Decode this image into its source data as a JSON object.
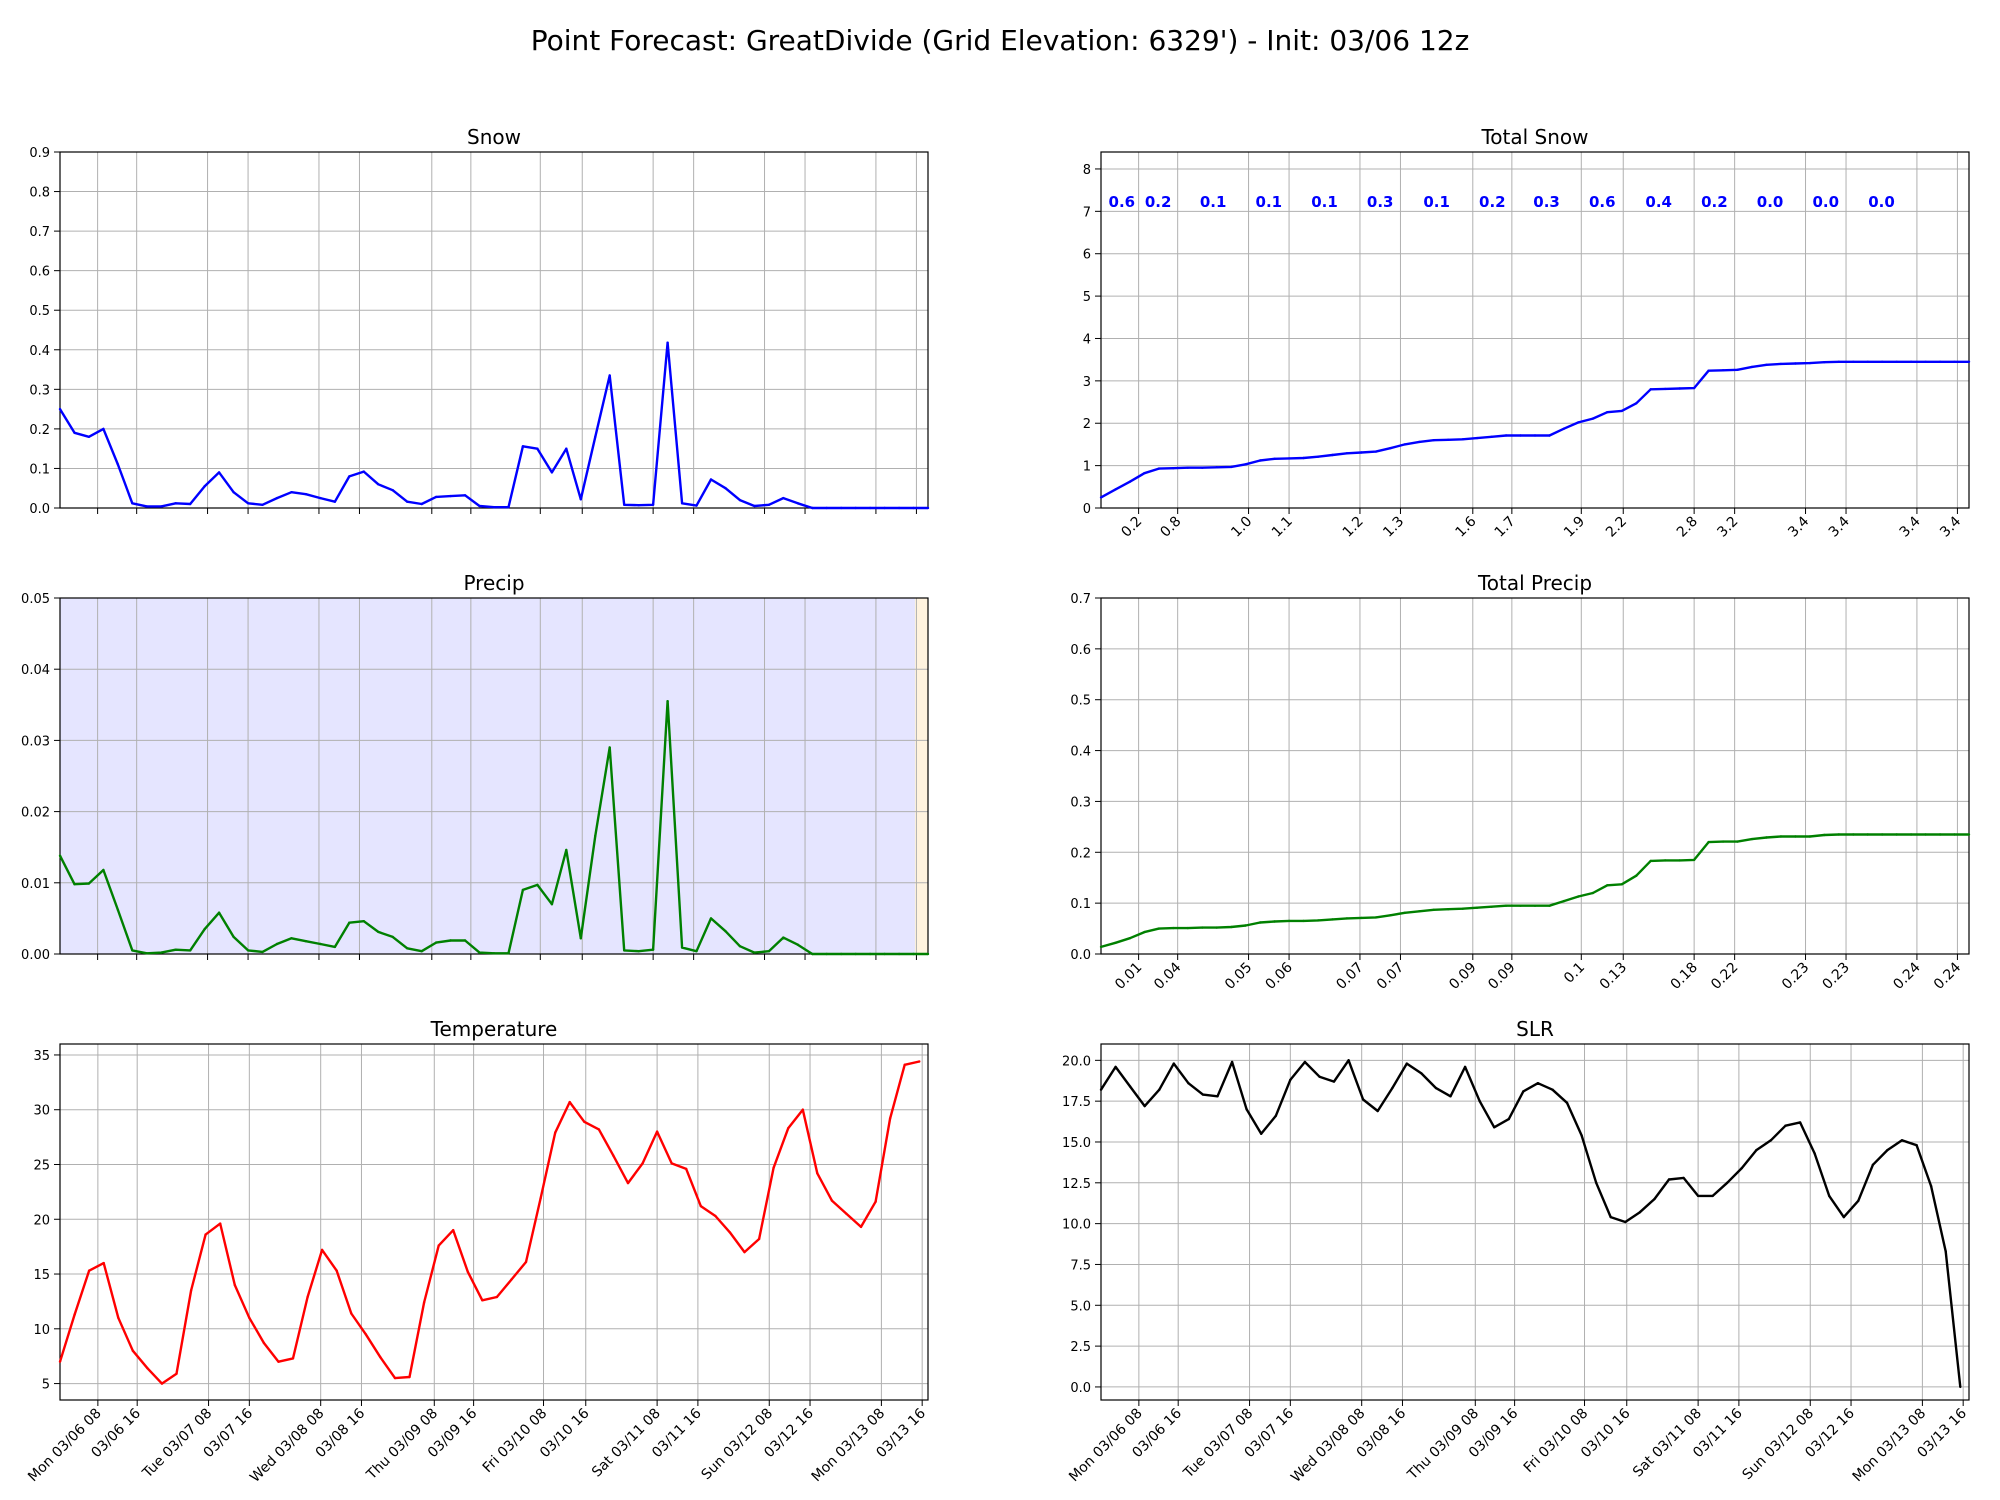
{
  "figure_title": "Point Forecast: GreatDivide (Grid Elevation: 6329') - Init: 03/06 12z",
  "date_ticks": [
    "Mon 03/06 08",
    "03/06 16",
    "Tue 03/07 08",
    "03/07 16",
    "Wed 03/08 08",
    "03/08 16",
    "Thu 03/09 08",
    "03/09 16",
    "Fri 03/10 08",
    "03/10 16",
    "Sat 03/11 08",
    "03/11 16",
    "Sun 03/12 08",
    "03/12 16",
    "Mon 03/13 08",
    "03/13 16"
  ],
  "colors": {
    "snow": "#0000ff",
    "precip": "#008000",
    "temperature": "#ff0000",
    "slr": "#000000",
    "precip_shade": "#e5e5ff",
    "precip_shade_end": "#fff3df",
    "grid": "#b0b0b0"
  },
  "chart_data": [
    {
      "id": "snow",
      "type": "line",
      "title": "Snow",
      "xlabel": "",
      "ylabel": "",
      "grid": true,
      "ylim": [
        0,
        0.9
      ],
      "yticks": [
        "0.0",
        "0.1",
        "0.2",
        "0.3",
        "0.4",
        "0.5",
        "0.6",
        "0.7",
        "0.8",
        "0.9"
      ],
      "xtick_labels_shown": false,
      "series": [
        {
          "color": "#0000ff",
          "values": [
            0.25,
            0.19,
            0.18,
            0.2,
            0.11,
            0.012,
            0.004,
            0.004,
            0.012,
            0.01,
            0.055,
            0.09,
            0.04,
            0.012,
            0.008,
            0.025,
            0.04,
            0.035,
            0.025,
            0.016,
            0.08,
            0.092,
            0.06,
            0.045,
            0.016,
            0.01,
            0.028,
            0.03,
            0.032,
            0.005,
            0.002,
            0.002,
            0.156,
            0.15,
            0.09,
            0.15,
            0.022,
            0.18,
            0.335,
            0.008,
            0.007,
            0.008,
            0.418,
            0.012,
            0.006,
            0.072,
            0.05,
            0.02,
            0.005,
            0.008,
            0.025,
            0.012,
            0.0,
            0.0,
            0.0,
            0.0,
            0.0,
            0.0,
            0.0,
            0.0,
            0.0
          ]
        }
      ]
    },
    {
      "id": "total-snow",
      "type": "line",
      "title": "Total Snow",
      "xlabel": "",
      "ylabel": "",
      "grid": true,
      "ylim": [
        0,
        8.4
      ],
      "yticks": [
        "0",
        "1",
        "2",
        "3",
        "4",
        "5",
        "6",
        "7",
        "8"
      ],
      "xtick_labels": [
        "0.2",
        "0.8",
        "1.0",
        "1.1",
        "1.2",
        "1.3",
        "1.6",
        "1.7",
        "1.9",
        "2.2",
        "2.8",
        "3.2",
        "3.4",
        "3.4",
        "3.4",
        "3.4"
      ],
      "period_totals": [
        "0.6",
        "0.2",
        "0.1",
        "0.1",
        "0.1",
        "0.3",
        "0.1",
        "0.2",
        "0.3",
        "0.6",
        "0.4",
        "0.2",
        "0.0",
        "0.0",
        "0.0"
      ],
      "series": [
        {
          "color": "#0000ff",
          "values": [
            0.25,
            0.44,
            0.62,
            0.82,
            0.93,
            0.94,
            0.95,
            0.95,
            0.96,
            0.97,
            1.03,
            1.12,
            1.16,
            1.17,
            1.18,
            1.21,
            1.25,
            1.29,
            1.31,
            1.33,
            1.41,
            1.5,
            1.56,
            1.6,
            1.61,
            1.62,
            1.65,
            1.68,
            1.71,
            1.71,
            1.71,
            1.71,
            1.87,
            2.02,
            2.11,
            2.26,
            2.29,
            2.47,
            2.8,
            2.81,
            2.82,
            2.83,
            3.24,
            3.25,
            3.26,
            3.33,
            3.38,
            3.4,
            3.41,
            3.42,
            3.44,
            3.45,
            3.45,
            3.45,
            3.45,
            3.45,
            3.45,
            3.45,
            3.45,
            3.45,
            3.45
          ]
        }
      ]
    },
    {
      "id": "precip",
      "type": "line",
      "title": "Precip",
      "xlabel": "",
      "ylabel": "",
      "grid": true,
      "ylim": [
        0,
        0.05
      ],
      "yticks": [
        "0.00",
        "0.01",
        "0.02",
        "0.03",
        "0.04",
        "0.05"
      ],
      "xtick_labels_shown": false,
      "series": [
        {
          "color": "#008000",
          "values": [
            0.0138,
            0.0098,
            0.0099,
            0.0118,
            0.0062,
            0.0005,
            0.0001,
            0.0002,
            0.0006,
            0.0005,
            0.0035,
            0.0058,
            0.0024,
            0.0005,
            0.0003,
            0.0014,
            0.0022,
            0.0018,
            0.0014,
            0.001,
            0.0044,
            0.0046,
            0.0031,
            0.0024,
            0.0008,
            0.0004,
            0.0016,
            0.0019,
            0.0019,
            0.0002,
            0.0001,
            0.0001,
            0.009,
            0.0097,
            0.007,
            0.0146,
            0.0022,
            0.0166,
            0.029,
            0.0005,
            0.0004,
            0.0006,
            0.0355,
            0.0009,
            0.0004,
            0.005,
            0.0032,
            0.0011,
            0.0002,
            0.0004,
            0.0023,
            0.0013,
            0.0,
            0.0,
            0.0,
            0.0,
            0.0,
            0.0,
            0.0,
            0.0,
            0.0
          ]
        }
      ]
    },
    {
      "id": "total-precip",
      "type": "line",
      "title": "Total Precip",
      "xlabel": "",
      "ylabel": "",
      "grid": true,
      "ylim": [
        0,
        0.7
      ],
      "yticks": [
        "0.0",
        "0.1",
        "0.2",
        "0.3",
        "0.4",
        "0.5",
        "0.6",
        "0.7"
      ],
      "xtick_labels": [
        "0.01",
        "0.04",
        "0.05",
        "0.06",
        "0.07",
        "0.07",
        "0.09",
        "0.09",
        "0.1",
        "0.13",
        "0.18",
        "0.22",
        "0.23",
        "0.23",
        "0.24",
        "0.24"
      ],
      "series": [
        {
          "color": "#008000",
          "values": [
            0.014,
            0.022,
            0.031,
            0.043,
            0.05,
            0.051,
            0.051,
            0.052,
            0.052,
            0.053,
            0.056,
            0.062,
            0.064,
            0.065,
            0.065,
            0.066,
            0.068,
            0.07,
            0.071,
            0.072,
            0.076,
            0.081,
            0.084,
            0.087,
            0.088,
            0.089,
            0.091,
            0.093,
            0.095,
            0.095,
            0.095,
            0.095,
            0.104,
            0.113,
            0.12,
            0.135,
            0.137,
            0.154,
            0.183,
            0.184,
            0.184,
            0.185,
            0.22,
            0.221,
            0.221,
            0.226,
            0.229,
            0.231,
            0.231,
            0.231,
            0.234,
            0.235,
            0.235,
            0.235,
            0.235,
            0.235,
            0.235,
            0.235,
            0.235,
            0.235,
            0.235
          ]
        }
      ]
    },
    {
      "id": "temperature",
      "type": "line",
      "title": "Temperature",
      "xlabel": "",
      "ylabel": "",
      "grid": true,
      "ylim": [
        3.5,
        36
      ],
      "yticks": [
        "5",
        "10",
        "15",
        "20",
        "25",
        "30",
        "35"
      ],
      "series": [
        {
          "color": "#ff0000",
          "values": [
            7.0,
            11.3,
            15.3,
            16.0,
            11.0,
            8.0,
            6.4,
            5.0,
            5.9,
            13.5,
            18.6,
            19.6,
            14.0,
            11.0,
            8.7,
            7.0,
            7.3,
            12.9,
            17.2,
            15.3,
            11.4,
            9.5,
            7.4,
            5.5,
            5.6,
            12.4,
            17.6,
            19.0,
            15.2,
            12.6,
            12.9,
            14.5,
            16.1,
            21.9,
            27.9,
            30.7,
            28.9,
            28.2,
            25.8,
            23.3,
            25.1,
            28.0,
            25.1,
            24.6,
            21.2,
            20.3,
            18.8,
            17.0,
            18.2,
            24.7,
            28.3,
            30.0,
            24.2,
            21.7,
            20.5,
            19.3,
            21.6,
            29.2,
            34.1,
            34.4
          ]
        }
      ]
    },
    {
      "id": "slr",
      "type": "line",
      "title": "SLR",
      "xlabel": "",
      "ylabel": "",
      "grid": true,
      "ylim": [
        -0.8,
        21
      ],
      "yticks": [
        "0.0",
        "2.5",
        "5.0",
        "7.5",
        "10.0",
        "12.5",
        "15.0",
        "17.5",
        "20.0"
      ],
      "series": [
        {
          "color": "#000000",
          "values": [
            18.2,
            19.6,
            18.4,
            17.2,
            18.2,
            19.8,
            18.6,
            17.9,
            17.8,
            19.9,
            17.0,
            15.5,
            16.6,
            18.8,
            19.9,
            19.0,
            18.7,
            20.0,
            17.6,
            16.9,
            18.3,
            19.8,
            19.2,
            18.3,
            17.8,
            19.6,
            17.5,
            15.9,
            16.4,
            18.1,
            18.6,
            18.2,
            17.4,
            15.4,
            12.5,
            10.4,
            10.1,
            10.7,
            11.5,
            12.7,
            12.8,
            11.7,
            11.7,
            12.5,
            13.4,
            14.5,
            15.1,
            16.0,
            16.2,
            14.3,
            11.7,
            10.4,
            11.4,
            13.6,
            14.5,
            15.1,
            14.8,
            12.3,
            8.3,
            0.0
          ]
        }
      ]
    }
  ]
}
